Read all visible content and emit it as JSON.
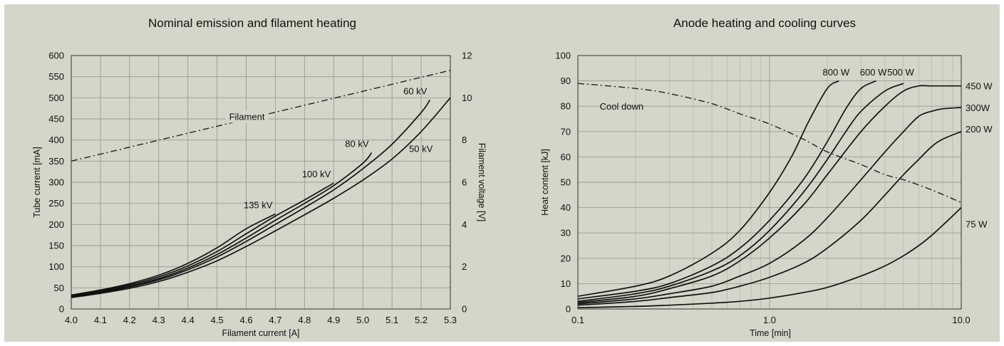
{
  "chart_data": [
    {
      "type": "line",
      "title": "Nominal emission and filament heating",
      "xlabel": "Filament current [A]",
      "ylabel": "Tube current [mA]",
      "y2label": "Filament voltage [V]",
      "xlim": [
        4.0,
        5.3
      ],
      "ylim": [
        0,
        600
      ],
      "y2lim": [
        0,
        12
      ],
      "xticks": [
        "4.0",
        "4.1",
        "4.2",
        "4.3",
        "4.4",
        "4.5",
        "4.6",
        "4.7",
        "4.8",
        "4.9",
        "5.0",
        "5.1",
        "5.2",
        "5.3"
      ],
      "yticks": [
        "0",
        "50",
        "100",
        "150",
        "200",
        "250",
        "300",
        "350",
        "400",
        "450",
        "500",
        "550",
        "600"
      ],
      "y2ticks": [
        "0",
        "2",
        "4",
        "6",
        "8",
        "10",
        "12"
      ],
      "grid": true,
      "series": [
        {
          "name": "135 kV",
          "axis": "left",
          "label_pos": "upper-left",
          "x": [
            4.0,
            4.1,
            4.2,
            4.3,
            4.4,
            4.5,
            4.6,
            4.7
          ],
          "y": [
            33,
            45,
            60,
            80,
            108,
            145,
            190,
            225
          ]
        },
        {
          "name": "100 kV",
          "axis": "left",
          "label_pos": "upper-left",
          "x": [
            4.0,
            4.1,
            4.2,
            4.3,
            4.4,
            4.5,
            4.6,
            4.7,
            4.8,
            4.9
          ],
          "y": [
            31,
            43,
            57,
            76,
            102,
            136,
            178,
            220,
            258,
            298
          ]
        },
        {
          "name": "80 kV",
          "axis": "left",
          "label_pos": "upper-left",
          "x": [
            4.0,
            4.1,
            4.2,
            4.3,
            4.4,
            4.5,
            4.6,
            4.7,
            4.8,
            4.9,
            5.0,
            5.03
          ],
          "y": [
            30,
            41,
            54,
            72,
            97,
            129,
            168,
            210,
            250,
            292,
            345,
            370
          ]
        },
        {
          "name": "60 kV",
          "axis": "left",
          "label_pos": "upper-left",
          "x": [
            4.0,
            4.1,
            4.2,
            4.3,
            4.4,
            4.5,
            4.6,
            4.7,
            4.8,
            4.9,
            5.0,
            5.1,
            5.2,
            5.23
          ],
          "y": [
            29,
            39,
            52,
            69,
            93,
            123,
            160,
            200,
            240,
            282,
            332,
            390,
            465,
            495
          ]
        },
        {
          "name": "50 kV",
          "axis": "left",
          "label_pos": "lower-right",
          "x": [
            4.0,
            4.1,
            4.2,
            4.3,
            4.4,
            4.5,
            4.6,
            4.7,
            4.8,
            4.9,
            5.0,
            5.1,
            5.2,
            5.3
          ],
          "y": [
            27,
            37,
            49,
            65,
            87,
            114,
            148,
            185,
            223,
            262,
            305,
            355,
            420,
            500
          ]
        },
        {
          "name": "Filament",
          "axis": "right",
          "style": "dash-dot",
          "x": [
            4.0,
            5.3
          ],
          "y": [
            7.0,
            11.3
          ]
        }
      ]
    },
    {
      "type": "line",
      "title": "Anode heating and cooling curves",
      "xlabel": "Time [min]",
      "ylabel": "Heat content [kJ]",
      "xscale": "log",
      "xlim": [
        0.1,
        10.0
      ],
      "ylim": [
        0,
        100
      ],
      "xticks": [
        "0.1",
        "1.0",
        "10.0"
      ],
      "yticks": [
        "0",
        "10",
        "20",
        "30",
        "40",
        "50",
        "60",
        "70",
        "80",
        "90",
        "100"
      ],
      "grid": true,
      "series": [
        {
          "name": "800 W",
          "x": [
            0.1,
            0.2,
            0.3,
            0.5,
            0.7,
            1.0,
            1.3,
            1.6,
            2.0,
            2.3
          ],
          "y": [
            5,
            9,
            13,
            22,
            31,
            46,
            60,
            74,
            87,
            90
          ]
        },
        {
          "name": "600 W",
          "x": [
            0.1,
            0.2,
            0.3,
            0.5,
            0.7,
            1.0,
            1.5,
            2.0,
            2.5,
            3.0,
            3.6
          ],
          "y": [
            4,
            7,
            10,
            17,
            24,
            35,
            51,
            66,
            79,
            87,
            90
          ]
        },
        {
          "name": "500 W",
          "x": [
            0.1,
            0.2,
            0.3,
            0.5,
            0.7,
            1.0,
            1.5,
            2.0,
            2.5,
            3.0,
            4.0,
            5.0
          ],
          "y": [
            3,
            6,
            9,
            15,
            21,
            31,
            46,
            59,
            70,
            78,
            86,
            89
          ]
        },
        {
          "name": "450 W",
          "x": [
            0.1,
            0.2,
            0.3,
            0.5,
            0.7,
            1.0,
            1.5,
            2.0,
            3.0,
            4.0,
            5.0,
            6.0,
            7.0,
            10.0
          ],
          "y": [
            2.5,
            5,
            8,
            13,
            19,
            28,
            41,
            53,
            70,
            80,
            86,
            88,
            88,
            88
          ]
        },
        {
          "name": "300W",
          "x": [
            0.1,
            0.2,
            0.3,
            0.5,
            0.7,
            1.0,
            1.5,
            2.0,
            3.0,
            4.0,
            5.0,
            6.0,
            7.0,
            8.0,
            10.0
          ],
          "y": [
            2,
            4,
            6,
            9,
            13,
            18,
            27,
            36,
            51,
            62,
            70,
            76,
            78,
            79,
            79.5
          ]
        },
        {
          "name": "200 W",
          "x": [
            0.1,
            0.2,
            0.3,
            0.5,
            0.7,
            1.0,
            1.5,
            2.0,
            3.0,
            4.0,
            5.0,
            6.0,
            7.0,
            8.0,
            10.0
          ],
          "y": [
            1.5,
            3,
            4.5,
            6.5,
            9,
            12.5,
            18,
            24,
            35,
            45,
            53,
            59,
            64,
            67,
            70
          ]
        },
        {
          "name": "75 W",
          "x": [
            0.1,
            0.2,
            0.3,
            0.5,
            0.7,
            1.0,
            1.5,
            2.0,
            3.0,
            4.0,
            5.0,
            6.0,
            7.0,
            8.0,
            10.0
          ],
          "y": [
            0.5,
            1,
            1.5,
            2.3,
            3,
            4.3,
            6.5,
            8.5,
            13,
            17,
            21,
            25,
            29,
            33,
            40
          ]
        },
        {
          "name": "Cool down",
          "style": "dash-dot",
          "x": [
            0.1,
            0.2,
            0.3,
            0.5,
            0.7,
            1.0,
            1.5,
            2.0,
            3.0,
            4.0,
            5.0,
            7.0,
            10.0
          ],
          "y": [
            89,
            87,
            85,
            81,
            77,
            73,
            67,
            62,
            57,
            53,
            51,
            47,
            42
          ]
        }
      ]
    }
  ]
}
